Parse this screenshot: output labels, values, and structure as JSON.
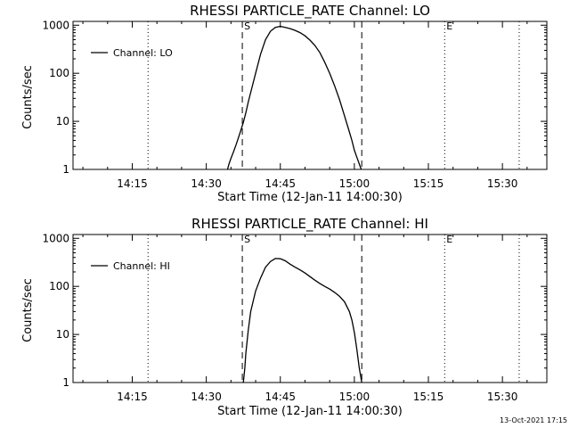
{
  "chart_data": [
    {
      "type": "line",
      "title": "RHESSI PARTICLE_RATE Channel: LO",
      "xlabel": "Start Time (12-Jan-11 14:00:30)",
      "ylabel": "Counts/sec",
      "y_scale": "log",
      "ylim": [
        1,
        1200
      ],
      "y_ticks": [
        1,
        10,
        100,
        1000
      ],
      "y_tick_labels": [
        "1",
        "10",
        "100",
        "1000"
      ],
      "xlim_minutes": [
        3,
        99
      ],
      "x_ticks_minutes": [
        15,
        30,
        45,
        60,
        75,
        90
      ],
      "x_tick_labels": [
        "14:15",
        "14:30",
        "14:45",
        "15:00",
        "15:15",
        "15:30"
      ],
      "grid": false,
      "legend_position": "top-left",
      "series": [
        {
          "name": "Channel: LO",
          "x_minutes": [
            34.3,
            34.6,
            35.0,
            35.5,
            36.0,
            36.5,
            37.0,
            37.5,
            38.0,
            38.5,
            39.0,
            40.0,
            41.0,
            42.0,
            43.0,
            44.0,
            45.0,
            46.0,
            47.0,
            48.0,
            49.0,
            50.0,
            51.0,
            52.0,
            53.0,
            54.0,
            55.0,
            56.0,
            57.0,
            58.0,
            59.0,
            59.5,
            60.0,
            60.5,
            61.0,
            61.4
          ],
          "values": [
            1,
            1.3,
            1.7,
            2.3,
            3.2,
            4.5,
            6.5,
            9.5,
            15,
            25,
            40,
            100,
            250,
            500,
            750,
            900,
            950,
            900,
            850,
            780,
            700,
            600,
            490,
            380,
            270,
            170,
            100,
            55,
            28,
            13,
            6,
            4,
            2.5,
            1.8,
            1.3,
            1
          ]
        }
      ],
      "markers": [
        {
          "label": "S",
          "x_minutes": 37.3,
          "style": "dashed"
        },
        {
          "label": "",
          "x_minutes": 61.5,
          "style": "dashed"
        },
        {
          "label": "",
          "x_minutes": 18.2,
          "style": "dotted"
        },
        {
          "label": "E",
          "x_minutes": 78.3,
          "style": "dotted"
        },
        {
          "label": "",
          "x_minutes": 93.4,
          "style": "dotted"
        }
      ]
    },
    {
      "type": "line",
      "title": "RHESSI PARTICLE_RATE Channel: HI",
      "xlabel": "Start Time (12-Jan-11 14:00:30)",
      "ylabel": "Counts/sec",
      "y_scale": "log",
      "ylim": [
        1,
        1200
      ],
      "y_ticks": [
        1,
        10,
        100,
        1000
      ],
      "y_tick_labels": [
        "1",
        "10",
        "100",
        "1000"
      ],
      "xlim_minutes": [
        3,
        99
      ],
      "x_ticks_minutes": [
        15,
        30,
        45,
        60,
        75,
        90
      ],
      "x_tick_labels": [
        "14:15",
        "14:30",
        "14:45",
        "15:00",
        "15:15",
        "15:30"
      ],
      "grid": false,
      "legend_position": "top-left",
      "series": [
        {
          "name": "Channel: HI",
          "x_minutes": [
            37.5,
            37.8,
            38.0,
            38.5,
            39.0,
            40.0,
            41.0,
            42.0,
            43.0,
            44.0,
            45.0,
            46.0,
            47.0,
            48.0,
            49.0,
            50.0,
            51.0,
            52.0,
            53.0,
            54.0,
            55.0,
            56.0,
            57.0,
            58.0,
            59.0,
            59.5,
            60.0,
            60.5,
            61.0,
            61.5
          ],
          "values": [
            1,
            2,
            4,
            12,
            30,
            80,
            150,
            250,
            330,
            380,
            375,
            340,
            290,
            250,
            220,
            190,
            160,
            135,
            115,
            100,
            88,
            75,
            62,
            48,
            30,
            20,
            11,
            5,
            2,
            1
          ]
        }
      ],
      "markers": [
        {
          "label": "S",
          "x_minutes": 37.3,
          "style": "dashed"
        },
        {
          "label": "",
          "x_minutes": 61.5,
          "style": "dashed"
        },
        {
          "label": "",
          "x_minutes": 18.2,
          "style": "dotted"
        },
        {
          "label": "E",
          "x_minutes": 78.3,
          "style": "dotted"
        },
        {
          "label": "",
          "x_minutes": 93.4,
          "style": "dotted"
        }
      ]
    }
  ],
  "timestamp": "13-Oct-2021 17:15"
}
